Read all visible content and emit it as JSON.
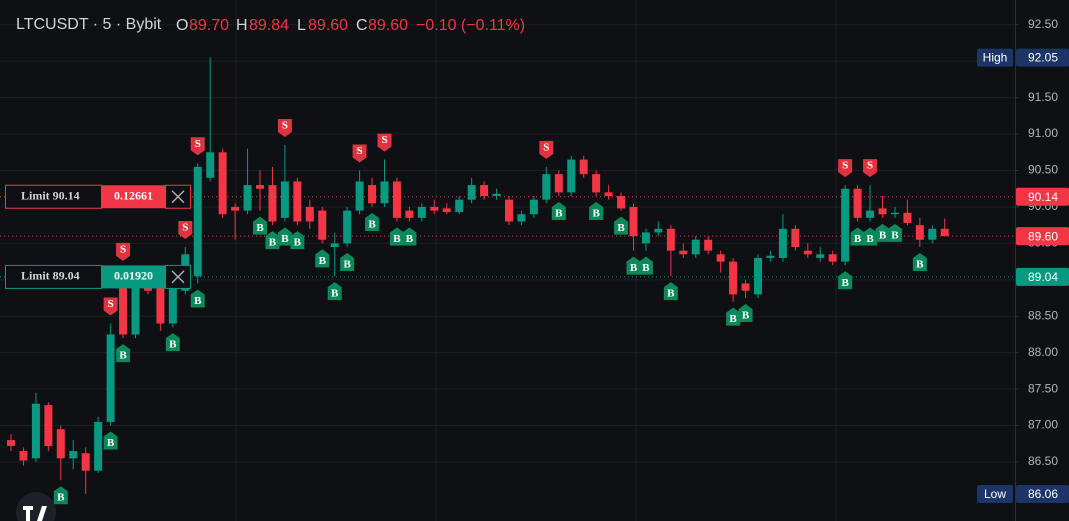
{
  "chart_data": {
    "type": "candlestick",
    "header": {
      "symbol": "LTCUSDT · 5 · Bybit",
      "o_label": "O",
      "o": "89.70",
      "h_label": "H",
      "h": "89.84",
      "l_label": "L",
      "l": "89.60",
      "c_label": "C",
      "c": "89.60",
      "change": "−0.10 (−0.11%)"
    },
    "up_color": "#089981",
    "down_color": "#f23645",
    "ylim": [
      85.69,
      92.84
    ],
    "yticks": [
      {
        "value": 92.5,
        "label": "92.50"
      },
      {
        "value": 92,
        "label": "92.00"
      },
      {
        "value": 91.5,
        "label": "91.50"
      },
      {
        "value": 91,
        "label": "91.00"
      },
      {
        "value": 90.5,
        "label": "90.50"
      },
      {
        "value": 90,
        "label": "90.00"
      },
      {
        "value": 89.5,
        "label": "89.50"
      },
      {
        "value": 89,
        "label": "89.00"
      },
      {
        "value": 88.5,
        "label": "88.50"
      },
      {
        "value": 88,
        "label": "88.00"
      },
      {
        "value": 87.5,
        "label": "87.50"
      },
      {
        "value": 87,
        "label": "87.00"
      },
      {
        "value": 86.5,
        "label": "86.50"
      }
    ],
    "grid": true,
    "ohlc": [
      [
        86.8,
        86.88,
        86.65,
        86.72
      ],
      [
        86.65,
        86.7,
        86.45,
        86.52
      ],
      [
        86.55,
        87.45,
        86.5,
        87.3
      ],
      [
        87.28,
        87.32,
        86.65,
        86.72
      ],
      [
        86.95,
        87.0,
        86.25,
        86.55
      ],
      [
        86.55,
        86.8,
        86.4,
        86.65
      ],
      [
        86.62,
        86.7,
        86.06,
        86.38
      ],
      [
        86.38,
        87.12,
        86.35,
        87.05
      ],
      [
        87.05,
        88.4,
        87.0,
        88.25
      ],
      [
        89.0,
        89.15,
        88.2,
        88.25
      ],
      [
        88.25,
        89.05,
        88.2,
        89.0
      ],
      [
        89.0,
        89.1,
        88.8,
        88.85
      ],
      [
        88.95,
        89.05,
        88.3,
        88.4
      ],
      [
        88.4,
        89.2,
        88.35,
        89.1
      ],
      [
        88.85,
        89.45,
        88.8,
        89.35
      ],
      [
        89.05,
        90.6,
        88.95,
        90.55
      ],
      [
        90.4,
        92.05,
        90.35,
        90.75
      ],
      [
        90.75,
        90.8,
        89.85,
        89.9
      ],
      [
        90.0,
        90.05,
        89.55,
        89.95
      ],
      [
        89.95,
        90.8,
        89.9,
        90.3
      ],
      [
        90.3,
        90.5,
        89.95,
        90.25
      ],
      [
        90.3,
        90.55,
        89.75,
        89.8
      ],
      [
        89.85,
        90.85,
        89.8,
        90.35
      ],
      [
        90.35,
        90.4,
        89.75,
        89.8
      ],
      [
        90.0,
        90.1,
        89.7,
        89.8
      ],
      [
        89.95,
        90.0,
        89.5,
        89.55
      ],
      [
        89.45,
        89.65,
        89.05,
        89.5
      ],
      [
        89.5,
        90.0,
        89.45,
        89.95
      ],
      [
        89.95,
        90.5,
        89.9,
        90.35
      ],
      [
        90.3,
        90.4,
        90.0,
        90.05
      ],
      [
        90.05,
        90.65,
        90.0,
        90.35
      ],
      [
        90.35,
        90.4,
        89.8,
        89.85
      ],
      [
        89.95,
        90.0,
        89.8,
        89.85
      ],
      [
        89.85,
        90.05,
        89.8,
        90.0
      ],
      [
        90.0,
        90.1,
        89.9,
        89.95
      ],
      [
        89.98,
        90.05,
        89.9,
        89.93
      ],
      [
        89.93,
        90.15,
        89.9,
        90.1
      ],
      [
        90.1,
        90.4,
        90.05,
        90.3
      ],
      [
        90.3,
        90.35,
        90.1,
        90.15
      ],
      [
        90.15,
        90.25,
        90.1,
        90.18
      ],
      [
        90.1,
        90.15,
        89.75,
        89.8
      ],
      [
        89.8,
        89.95,
        89.75,
        89.9
      ],
      [
        89.9,
        90.15,
        89.85,
        90.1
      ],
      [
        90.1,
        90.55,
        90.05,
        90.45
      ],
      [
        90.45,
        90.5,
        90.15,
        90.2
      ],
      [
        90.2,
        90.7,
        90.15,
        90.65
      ],
      [
        90.65,
        90.7,
        90.4,
        90.45
      ],
      [
        90.45,
        90.5,
        90.15,
        90.2
      ],
      [
        90.2,
        90.3,
        90.1,
        90.15
      ],
      [
        90.15,
        90.2,
        89.95,
        89.98
      ],
      [
        90.0,
        90.05,
        89.4,
        89.6
      ],
      [
        89.5,
        89.7,
        89.4,
        89.65
      ],
      [
        89.65,
        89.8,
        89.6,
        89.7
      ],
      [
        89.7,
        89.75,
        89.05,
        89.4
      ],
      [
        89.4,
        89.5,
        89.3,
        89.35
      ],
      [
        89.35,
        89.6,
        89.3,
        89.55
      ],
      [
        89.55,
        89.6,
        89.35,
        89.4
      ],
      [
        89.35,
        89.4,
        89.1,
        89.25
      ],
      [
        89.25,
        89.3,
        88.7,
        88.8
      ],
      [
        88.95,
        89.0,
        88.75,
        88.85
      ],
      [
        88.8,
        89.35,
        88.75,
        89.3
      ],
      [
        89.3,
        89.4,
        89.25,
        89.33
      ],
      [
        89.3,
        89.9,
        89.25,
        89.7
      ],
      [
        89.7,
        89.75,
        89.4,
        89.45
      ],
      [
        89.4,
        89.5,
        89.3,
        89.35
      ],
      [
        89.3,
        89.45,
        89.25,
        89.35
      ],
      [
        89.35,
        89.4,
        89.2,
        89.25
      ],
      [
        89.25,
        90.3,
        89.2,
        90.25
      ],
      [
        90.25,
        90.3,
        89.8,
        89.85
      ],
      [
        89.85,
        90.3,
        89.8,
        89.95
      ],
      [
        89.98,
        90.15,
        89.85,
        89.9
      ],
      [
        89.9,
        90.0,
        89.85,
        89.92
      ],
      [
        89.92,
        90.1,
        89.75,
        89.78
      ],
      [
        89.75,
        89.85,
        89.45,
        89.55
      ],
      [
        89.55,
        89.75,
        89.5,
        89.7
      ],
      [
        89.7,
        89.84,
        89.6,
        89.6
      ]
    ],
    "markers": [
      {
        "label": "S",
        "at": 8
      },
      {
        "label": "S",
        "at": 9
      },
      {
        "label": "S",
        "at": 14
      },
      {
        "label": "S",
        "at": 15
      },
      {
        "label": "S",
        "at": 22
      },
      {
        "label": "S",
        "at": 28
      },
      {
        "label": "S",
        "at": 30
      },
      {
        "label": "S",
        "at": 43
      },
      {
        "label": "S",
        "at": 67
      },
      {
        "label": "S",
        "at": 69
      },
      {
        "label": "B",
        "at": 4
      },
      {
        "label": "B",
        "at": 8
      },
      {
        "label": "B",
        "at": 9
      },
      {
        "label": "B",
        "at": 13
      },
      {
        "label": "B",
        "at": 15
      },
      {
        "label": "B",
        "at": 20
      },
      {
        "label": "B",
        "at": 21
      },
      {
        "label": "B",
        "at": 22
      },
      {
        "label": "B",
        "at": 23
      },
      {
        "label": "B",
        "at": 25
      },
      {
        "label": "B",
        "at": 26
      },
      {
        "label": "B",
        "at": 27
      },
      {
        "label": "B",
        "at": 29
      },
      {
        "label": "B",
        "at": 31
      },
      {
        "label": "B",
        "at": 32
      },
      {
        "label": "B",
        "at": 44
      },
      {
        "label": "B",
        "at": 47
      },
      {
        "label": "B",
        "at": 49
      },
      {
        "label": "B",
        "at": 50
      },
      {
        "label": "B",
        "at": 51
      },
      {
        "label": "B",
        "at": 53
      },
      {
        "label": "B",
        "at": 58
      },
      {
        "label": "B",
        "at": 59
      },
      {
        "label": "B",
        "at": 67
      },
      {
        "label": "B",
        "at": 68
      },
      {
        "label": "B",
        "at": 69
      },
      {
        "label": "B",
        "at": 70
      },
      {
        "label": "B",
        "at": 71
      },
      {
        "label": "B",
        "at": 73
      }
    ],
    "price_tags": [
      {
        "value": 92.05,
        "label": "92.05",
        "tag": "High",
        "color": "#1c3566",
        "line": false
      },
      {
        "value": 90.14,
        "label": "90.14",
        "color": "#f23645",
        "line": true
      },
      {
        "value": 89.6,
        "label": "89.60",
        "color": "#f23645",
        "line": true
      },
      {
        "value": 89.04,
        "label": "89.04",
        "color": "#089981",
        "line": true
      },
      {
        "value": 86.06,
        "label": "86.06",
        "tag": "Low",
        "color": "#1c3566",
        "line": false
      }
    ],
    "orders": [
      {
        "label": "Limit 90.14",
        "qty": "0.12661",
        "price": 90.14,
        "color": "#f23645"
      },
      {
        "label": "Limit 89.04",
        "qty": "0.01920",
        "price": 89.04,
        "color": "#089981"
      }
    ]
  }
}
